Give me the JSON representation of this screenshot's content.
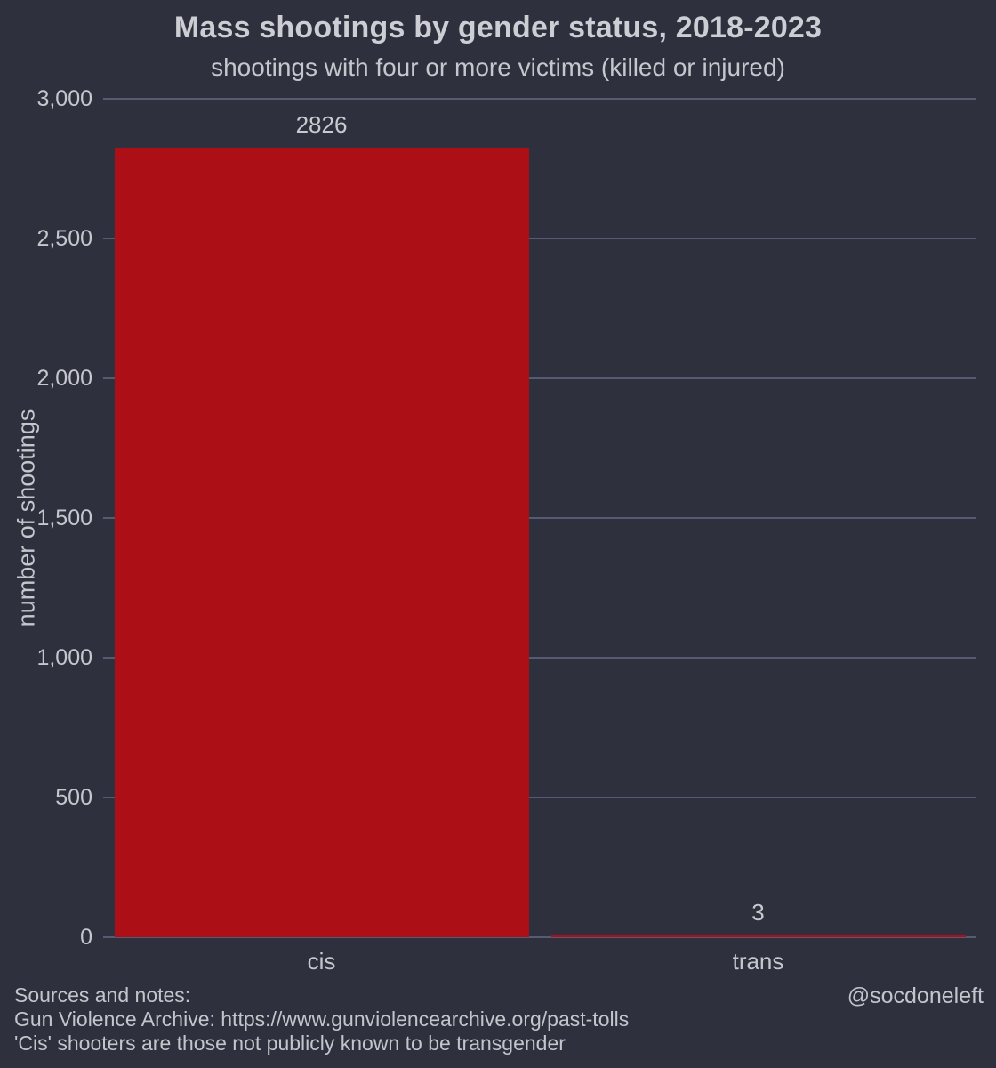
{
  "chart_data": {
    "type": "bar",
    "title": "Mass shootings by gender status, 2018-2023",
    "subtitle": "shootings with four or more victims (killed or injured)",
    "xlabel": "",
    "ylabel": "number of shootings",
    "categories": [
      "cis",
      "trans"
    ],
    "values": [
      2826,
      3
    ],
    "value_labels": [
      "2826",
      "3"
    ],
    "ylim": [
      0,
      3000
    ],
    "yticks": [
      0,
      500,
      1000,
      1500,
      2000,
      2500,
      3000
    ],
    "ytick_labels": [
      "0",
      "500",
      "1,000",
      "1,500",
      "2,000",
      "2,500",
      "3,000"
    ],
    "grid": "horizontal gridlines on",
    "legend": "none",
    "colors": {
      "bar": "#ac0f16",
      "background": "#2e303e",
      "gridline": "#565a72",
      "text": "#c6c7cd"
    }
  },
  "footer": {
    "lines": [
      "Sources and notes:",
      "Gun Violence Archive: https://www.gunviolencearchive.org/past-tolls",
      "'Cis' shooters are those not publicly known to be transgender"
    ],
    "credit": "@socdoneleft"
  }
}
